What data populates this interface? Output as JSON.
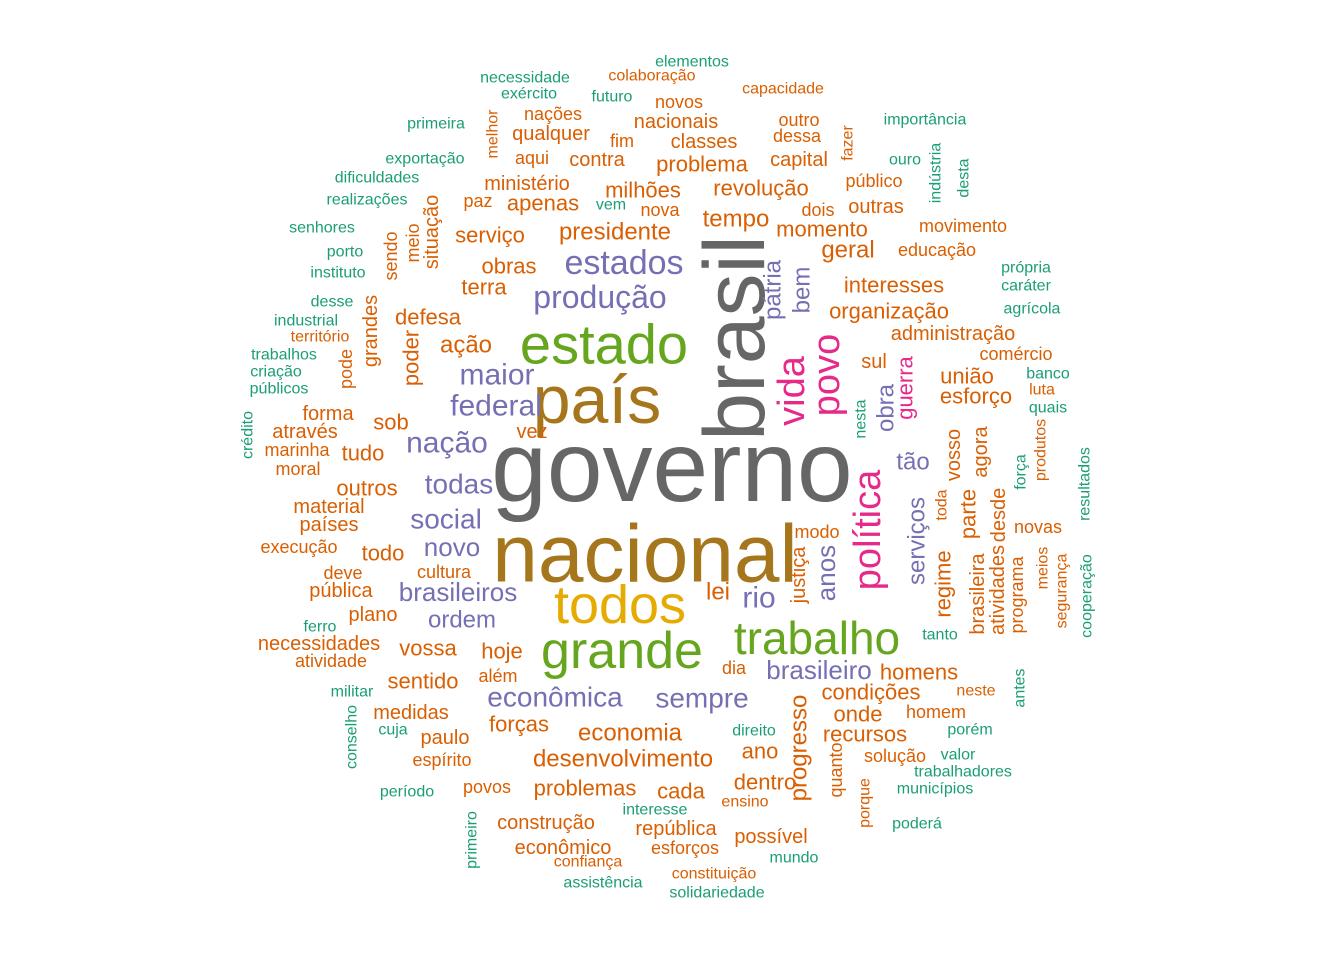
{
  "chart_data": {
    "type": "wordcloud",
    "palette": {
      "teal": "#1b9e77",
      "orange": "#d95f02",
      "purple": "#7570b3",
      "magenta": "#e7298a",
      "green": "#66a61e",
      "gold": "#e6ab02",
      "brown": "#a6761d",
      "gray": "#666666"
    },
    "words": [
      {
        "text": "governo",
        "color": "gray"
      },
      {
        "text": "nacional",
        "color": "brown"
      },
      {
        "text": "brasil",
        "color": "gray"
      },
      {
        "text": "país",
        "color": "brown"
      },
      {
        "text": "estado",
        "color": "green"
      },
      {
        "text": "todos",
        "color": "gold"
      },
      {
        "text": "grande",
        "color": "green"
      },
      {
        "text": "trabalho",
        "color": "green"
      },
      {
        "text": "política",
        "color": "magenta"
      },
      {
        "text": "povo",
        "color": "magenta"
      },
      {
        "text": "vida",
        "color": "magenta"
      },
      {
        "text": "estados",
        "color": "purple"
      },
      {
        "text": "produção",
        "color": "purple"
      },
      {
        "text": "federal",
        "color": "purple"
      },
      {
        "text": "maior",
        "color": "purple"
      },
      {
        "text": "nação",
        "color": "purple"
      },
      {
        "text": "todas",
        "color": "purple"
      },
      {
        "text": "social",
        "color": "purple"
      },
      {
        "text": "novo",
        "color": "purple"
      },
      {
        "text": "brasileiros",
        "color": "purple"
      },
      {
        "text": "ordem",
        "color": "purple"
      },
      {
        "text": "rio",
        "color": "purple"
      },
      {
        "text": "anos",
        "color": "purple"
      },
      {
        "text": "brasileiro",
        "color": "purple"
      },
      {
        "text": "econômica",
        "color": "purple"
      },
      {
        "text": "sempre",
        "color": "purple"
      },
      {
        "text": "serviços",
        "color": "purple"
      },
      {
        "text": "tão",
        "color": "purple"
      },
      {
        "text": "obra",
        "color": "purple"
      },
      {
        "text": "bem",
        "color": "purple"
      },
      {
        "text": "pátria",
        "color": "purple"
      },
      {
        "text": "guerra",
        "color": "magenta"
      },
      {
        "text": "elementos",
        "color": "teal"
      },
      {
        "text": "necessidade",
        "color": "teal"
      },
      {
        "text": "colaboração",
        "color": "orange"
      },
      {
        "text": "exército",
        "color": "teal"
      },
      {
        "text": "capacidade",
        "color": "orange"
      },
      {
        "text": "futuro",
        "color": "teal"
      },
      {
        "text": "novos",
        "color": "orange"
      },
      {
        "text": "nações",
        "color": "orange"
      },
      {
        "text": "melhor",
        "color": "orange"
      },
      {
        "text": "primeira",
        "color": "teal"
      },
      {
        "text": "nacionais",
        "color": "orange"
      },
      {
        "text": "outro",
        "color": "orange"
      },
      {
        "text": "importância",
        "color": "teal"
      },
      {
        "text": "qualquer",
        "color": "orange"
      },
      {
        "text": "fim",
        "color": "orange"
      },
      {
        "text": "classes",
        "color": "orange"
      },
      {
        "text": "dessa",
        "color": "orange"
      },
      {
        "text": "fazer",
        "color": "orange"
      },
      {
        "text": "exportação",
        "color": "teal"
      },
      {
        "text": "aqui",
        "color": "orange"
      },
      {
        "text": "contra",
        "color": "orange"
      },
      {
        "text": "problema",
        "color": "orange"
      },
      {
        "text": "capital",
        "color": "orange"
      },
      {
        "text": "ouro",
        "color": "teal"
      },
      {
        "text": "indústria",
        "color": "teal"
      },
      {
        "text": "desta",
        "color": "teal"
      },
      {
        "text": "dificuldades",
        "color": "teal"
      },
      {
        "text": "ministério",
        "color": "orange"
      },
      {
        "text": "milhões",
        "color": "orange"
      },
      {
        "text": "revolução",
        "color": "orange"
      },
      {
        "text": "público",
        "color": "orange"
      },
      {
        "text": "realizações",
        "color": "teal"
      },
      {
        "text": "paz",
        "color": "orange"
      },
      {
        "text": "apenas",
        "color": "orange"
      },
      {
        "text": "vem",
        "color": "teal"
      },
      {
        "text": "nova",
        "color": "orange"
      },
      {
        "text": "dois",
        "color": "orange"
      },
      {
        "text": "outras",
        "color": "orange"
      },
      {
        "text": "senhores",
        "color": "teal"
      },
      {
        "text": "meio",
        "color": "orange"
      },
      {
        "text": "situação",
        "color": "orange"
      },
      {
        "text": "tempo",
        "color": "orange"
      },
      {
        "text": "movimento",
        "color": "orange"
      },
      {
        "text": "serviço",
        "color": "orange"
      },
      {
        "text": "presidente",
        "color": "orange"
      },
      {
        "text": "momento",
        "color": "orange"
      },
      {
        "text": "porto",
        "color": "teal"
      },
      {
        "text": "sendo",
        "color": "orange"
      },
      {
        "text": "geral",
        "color": "orange"
      },
      {
        "text": "educação",
        "color": "orange"
      },
      {
        "text": "instituto",
        "color": "teal"
      },
      {
        "text": "obras",
        "color": "orange"
      },
      {
        "text": "própria",
        "color": "teal"
      },
      {
        "text": "terra",
        "color": "orange"
      },
      {
        "text": "interesses",
        "color": "orange"
      },
      {
        "text": "caráter",
        "color": "teal"
      },
      {
        "text": "desse",
        "color": "teal"
      },
      {
        "text": "grandes",
        "color": "orange"
      },
      {
        "text": "organização",
        "color": "orange"
      },
      {
        "text": "agrícola",
        "color": "teal"
      },
      {
        "text": "industrial",
        "color": "teal"
      },
      {
        "text": "defesa",
        "color": "orange"
      },
      {
        "text": "território",
        "color": "orange"
      },
      {
        "text": "administração",
        "color": "orange"
      },
      {
        "text": "ação",
        "color": "orange"
      },
      {
        "text": "pode",
        "color": "orange"
      },
      {
        "text": "poder",
        "color": "orange"
      },
      {
        "text": "trabalhos",
        "color": "teal"
      },
      {
        "text": "comércio",
        "color": "orange"
      },
      {
        "text": "sul",
        "color": "orange"
      },
      {
        "text": "criação",
        "color": "teal"
      },
      {
        "text": "união",
        "color": "orange"
      },
      {
        "text": "banco",
        "color": "teal"
      },
      {
        "text": "públicos",
        "color": "teal"
      },
      {
        "text": "luta",
        "color": "orange"
      },
      {
        "text": "esforço",
        "color": "orange"
      },
      {
        "text": "forma",
        "color": "orange"
      },
      {
        "text": "quais",
        "color": "teal"
      },
      {
        "text": "sob",
        "color": "orange"
      },
      {
        "text": "crédito",
        "color": "teal"
      },
      {
        "text": "através",
        "color": "orange"
      },
      {
        "text": "vez",
        "color": "orange"
      },
      {
        "text": "nesta",
        "color": "teal"
      },
      {
        "text": "marinha",
        "color": "orange"
      },
      {
        "text": "tudo",
        "color": "orange"
      },
      {
        "text": "agora",
        "color": "orange"
      },
      {
        "text": "vosso",
        "color": "orange"
      },
      {
        "text": "produtos",
        "color": "orange"
      },
      {
        "text": "resultados",
        "color": "teal"
      },
      {
        "text": "força",
        "color": "teal"
      },
      {
        "text": "moral",
        "color": "orange"
      },
      {
        "text": "outros",
        "color": "orange"
      },
      {
        "text": "toda",
        "color": "orange"
      },
      {
        "text": "parte",
        "color": "orange"
      },
      {
        "text": "material",
        "color": "orange"
      },
      {
        "text": "desde",
        "color": "orange"
      },
      {
        "text": "países",
        "color": "orange"
      },
      {
        "text": "modo",
        "color": "orange"
      },
      {
        "text": "novas",
        "color": "orange"
      },
      {
        "text": "execução",
        "color": "orange"
      },
      {
        "text": "todo",
        "color": "orange"
      },
      {
        "text": "justiça",
        "color": "orange"
      },
      {
        "text": "atividades",
        "color": "orange"
      },
      {
        "text": "programa",
        "color": "orange"
      },
      {
        "text": "meios",
        "color": "orange"
      },
      {
        "text": "segurança",
        "color": "orange"
      },
      {
        "text": "cooperação",
        "color": "teal"
      },
      {
        "text": "deve",
        "color": "orange"
      },
      {
        "text": "cultura",
        "color": "orange"
      },
      {
        "text": "brasileira",
        "color": "orange"
      },
      {
        "text": "regime",
        "color": "orange"
      },
      {
        "text": "pública",
        "color": "orange"
      },
      {
        "text": "lei",
        "color": "orange"
      },
      {
        "text": "ferro",
        "color": "teal"
      },
      {
        "text": "plano",
        "color": "orange"
      },
      {
        "text": "tanto",
        "color": "teal"
      },
      {
        "text": "necessidades",
        "color": "orange"
      },
      {
        "text": "vossa",
        "color": "orange"
      },
      {
        "text": "hoje",
        "color": "orange"
      },
      {
        "text": "atividade",
        "color": "orange"
      },
      {
        "text": "dia",
        "color": "orange"
      },
      {
        "text": "homens",
        "color": "orange"
      },
      {
        "text": "antes",
        "color": "teal"
      },
      {
        "text": "além",
        "color": "orange"
      },
      {
        "text": "sentido",
        "color": "orange"
      },
      {
        "text": "militar",
        "color": "teal"
      },
      {
        "text": "condições",
        "color": "orange"
      },
      {
        "text": "neste",
        "color": "orange"
      },
      {
        "text": "conselho",
        "color": "teal"
      },
      {
        "text": "medidas",
        "color": "orange"
      },
      {
        "text": "onde",
        "color": "orange"
      },
      {
        "text": "homem",
        "color": "orange"
      },
      {
        "text": "forças",
        "color": "orange"
      },
      {
        "text": "progresso",
        "color": "orange"
      },
      {
        "text": "cuja",
        "color": "teal"
      },
      {
        "text": "direito",
        "color": "teal"
      },
      {
        "text": "porém",
        "color": "teal"
      },
      {
        "text": "paulo",
        "color": "orange"
      },
      {
        "text": "economia",
        "color": "orange"
      },
      {
        "text": "recursos",
        "color": "orange"
      },
      {
        "text": "desenvolvimento",
        "color": "orange"
      },
      {
        "text": "ano",
        "color": "orange"
      },
      {
        "text": "valor",
        "color": "teal"
      },
      {
        "text": "espírito",
        "color": "orange"
      },
      {
        "text": "solução",
        "color": "orange"
      },
      {
        "text": "quanto",
        "color": "orange"
      },
      {
        "text": "trabalhadores",
        "color": "teal"
      },
      {
        "text": "dentro",
        "color": "orange"
      },
      {
        "text": "povos",
        "color": "orange"
      },
      {
        "text": "problemas",
        "color": "orange"
      },
      {
        "text": "cada",
        "color": "orange"
      },
      {
        "text": "municípios",
        "color": "teal"
      },
      {
        "text": "período",
        "color": "teal"
      },
      {
        "text": "ensino",
        "color": "orange"
      },
      {
        "text": "porque",
        "color": "orange"
      },
      {
        "text": "interesse",
        "color": "teal"
      },
      {
        "text": "construção",
        "color": "orange"
      },
      {
        "text": "poderá",
        "color": "teal"
      },
      {
        "text": "primeiro",
        "color": "teal"
      },
      {
        "text": "república",
        "color": "orange"
      },
      {
        "text": "possível",
        "color": "orange"
      },
      {
        "text": "econômico",
        "color": "orange"
      },
      {
        "text": "esforços",
        "color": "orange"
      },
      {
        "text": "confiança",
        "color": "orange"
      },
      {
        "text": "mundo",
        "color": "teal"
      },
      {
        "text": "constituição",
        "color": "orange"
      },
      {
        "text": "assistência",
        "color": "teal"
      },
      {
        "text": "solidariedade",
        "color": "teal"
      }
    ]
  }
}
